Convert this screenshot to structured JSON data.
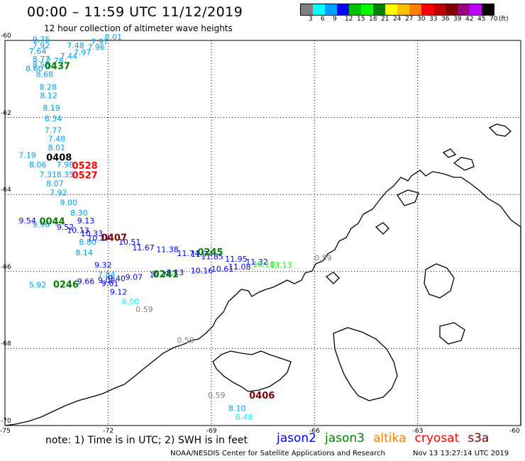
{
  "header": {
    "title": "00:00 – 11:59 UTC 11/12/2019",
    "subtitle": "12 hour collection of altimeter wave heights"
  },
  "legend": {
    "unit": "(ft)",
    "colors": [
      "#808080",
      "#00ffff",
      "#00a0ff",
      "#0000ff",
      "#00c000",
      "#00ff00",
      "#008000",
      "#ffff00",
      "#ffc000",
      "#ff8000",
      "#ff0000",
      "#c00000",
      "#800000",
      "#9b0080",
      "#c000ff",
      "#000000"
    ],
    "labels": [
      "3",
      "6",
      "9",
      "12",
      "15",
      "18",
      "21",
      "24",
      "27",
      "30",
      "33",
      "36",
      "39",
      "42",
      "45",
      "70"
    ]
  },
  "axes": {
    "lat_labels": [
      "-60",
      "-62",
      "-64",
      "-66",
      "-68",
      "-70"
    ],
    "lon_labels": [
      "-75",
      "-72",
      "-69",
      "-66",
      "-63",
      "-60"
    ]
  },
  "chart_data": {
    "type": "scatter",
    "x_range": [
      -75,
      -60
    ],
    "y_range": [
      -70,
      -60
    ],
    "grid": true,
    "points": [
      {
        "x": -74.2,
        "y": -60.05,
        "v": "9.75",
        "c": "#00a0ff"
      },
      {
        "x": -72.1,
        "y": -59.98,
        "v": "8.01",
        "c": "#00a0ff"
      },
      {
        "x": -72.5,
        "y": -60.1,
        "v": "7.97",
        "c": "#00a0ff"
      },
      {
        "x": -73.2,
        "y": -60.2,
        "v": "7.48",
        "c": "#00a0ff"
      },
      {
        "x": -74.2,
        "y": -60.2,
        "v": "7.92",
        "c": "#00a0ff"
      },
      {
        "x": -72.6,
        "y": -60.25,
        "v": "7.96",
        "c": "#00a0ff"
      },
      {
        "x": -73.0,
        "y": -60.38,
        "v": "7.97",
        "c": "#00a0ff"
      },
      {
        "x": -73.4,
        "y": -60.48,
        "v": "7.44",
        "c": "#00a0ff"
      },
      {
        "x": -74.3,
        "y": -60.35,
        "v": "7.64",
        "c": "#00a0ff"
      },
      {
        "x": -73.8,
        "y": -60.6,
        "v": "7.78",
        "c": "#00a0ff"
      },
      {
        "x": -74.2,
        "y": -60.55,
        "v": "8.77",
        "c": "#00a0ff"
      },
      {
        "x": -74.2,
        "y": -60.7,
        "v": "8.53",
        "c": "#00a0ff"
      },
      {
        "x": -74.4,
        "y": -60.8,
        "v": "8.60",
        "c": "#00a0ff"
      },
      {
        "x": -74.1,
        "y": -60.95,
        "v": "8.68",
        "c": "#00a0ff"
      },
      {
        "x": -74.0,
        "y": -61.28,
        "v": "8.28",
        "c": "#00a0ff"
      },
      {
        "x": -73.98,
        "y": -61.5,
        "v": "8.12",
        "c": "#00a0ff"
      },
      {
        "x": -73.9,
        "y": -61.82,
        "v": "8.19",
        "c": "#00a0ff"
      },
      {
        "x": -73.85,
        "y": -62.1,
        "v": "8.34",
        "c": "#00a0ff"
      },
      {
        "x": -73.85,
        "y": -62.4,
        "v": "7.77",
        "c": "#00a0ff"
      },
      {
        "x": -73.75,
        "y": -62.62,
        "v": "7.48",
        "c": "#00a0ff"
      },
      {
        "x": -73.75,
        "y": -62.85,
        "v": "8.01",
        "c": "#00a0ff"
      },
      {
        "x": -74.6,
        "y": -63.05,
        "v": "7.19",
        "c": "#00a0ff"
      },
      {
        "x": -74.3,
        "y": -63.3,
        "v": "8.06",
        "c": "#00a0ff"
      },
      {
        "x": -73.5,
        "y": -63.3,
        "v": "7.98",
        "c": "#00a0ff"
      },
      {
        "x": -74.0,
        "y": -63.55,
        "v": "7.31",
        "c": "#00a0ff"
      },
      {
        "x": -73.5,
        "y": -63.55,
        "v": "8.35",
        "c": "#00a0ff"
      },
      {
        "x": -73.8,
        "y": -63.78,
        "v": "8.07",
        "c": "#00a0ff"
      },
      {
        "x": -73.7,
        "y": -64.02,
        "v": "7.92",
        "c": "#00a0ff"
      },
      {
        "x": -73.4,
        "y": -64.28,
        "v": "9.00",
        "c": "#00a0ff"
      },
      {
        "x": -73.1,
        "y": -64.55,
        "v": "8.30",
        "c": "#00a0ff"
      },
      {
        "x": -74.6,
        "y": -64.75,
        "v": "9.54",
        "c": "#0000ff"
      },
      {
        "x": -74.2,
        "y": -64.85,
        "v": "9.96",
        "c": "#00a0ff"
      },
      {
        "x": -73.5,
        "y": -64.92,
        "v": "9.52",
        "c": "#0000ff"
      },
      {
        "x": -72.9,
        "y": -64.75,
        "v": "9.13",
        "c": "#0000ff"
      },
      {
        "x": -73.2,
        "y": -65.0,
        "v": "10.13",
        "c": "#0000ff"
      },
      {
        "x": -72.8,
        "y": -65.08,
        "v": "10.33",
        "c": "#0000ff"
      },
      {
        "x": -72.6,
        "y": -65.2,
        "v": "10.27",
        "c": "#0000ff"
      },
      {
        "x": -72.85,
        "y": -65.3,
        "v": "8.80",
        "c": "#00a0ff"
      },
      {
        "x": -71.7,
        "y": -65.3,
        "v": "10.51",
        "c": "#0000ff"
      },
      {
        "x": -71.3,
        "y": -65.45,
        "v": "11.67",
        "c": "#0000ff"
      },
      {
        "x": -70.6,
        "y": -65.5,
        "v": "11.38",
        "c": "#0000ff"
      },
      {
        "x": -70.0,
        "y": -65.6,
        "v": "11.74",
        "c": "#0000ff"
      },
      {
        "x": -69.6,
        "y": -65.62,
        "v": "11.74",
        "c": "#0000ff"
      },
      {
        "x": -69.3,
        "y": -65.68,
        "v": "11.85",
        "c": "#0000ff"
      },
      {
        "x": -68.6,
        "y": -65.75,
        "v": "11.95",
        "c": "#0000ff"
      },
      {
        "x": -68.0,
        "y": -65.82,
        "v": "11.32",
        "c": "#0000ff"
      },
      {
        "x": -72.95,
        "y": -65.58,
        "v": "8.14",
        "c": "#00a0ff"
      },
      {
        "x": -72.4,
        "y": -65.9,
        "v": "9.32",
        "c": "#0000ff"
      },
      {
        "x": -68.5,
        "y": -65.95,
        "v": "11.08",
        "c": "#0000ff"
      },
      {
        "x": -69.0,
        "y": -66.0,
        "v": "10.61",
        "c": "#0000ff"
      },
      {
        "x": -69.6,
        "y": -66.05,
        "v": "10.16",
        "c": "#0000ff"
      },
      {
        "x": -70.3,
        "y": -66.1,
        "v": "9.13",
        "c": "#0000ff"
      },
      {
        "x": -70.8,
        "y": -66.15,
        "v": "10.74",
        "c": "#0000ff"
      },
      {
        "x": -72.3,
        "y": -66.15,
        "v": "7.84",
        "c": "#00a0ff"
      },
      {
        "x": -71.5,
        "y": -66.22,
        "v": "9.07",
        "c": "#0000ff"
      },
      {
        "x": -72.0,
        "y": -66.25,
        "v": "9.40",
        "c": "#0000ff"
      },
      {
        "x": -72.3,
        "y": -66.3,
        "v": "9.02",
        "c": "#0000ff"
      },
      {
        "x": -72.9,
        "y": -66.33,
        "v": "9.66",
        "c": "#0000ff"
      },
      {
        "x": -72.2,
        "y": -66.38,
        "v": "9.61",
        "c": "#0000ff"
      },
      {
        "x": -74.3,
        "y": -66.42,
        "v": "5.92",
        "c": "#00a0ff"
      },
      {
        "x": -71.95,
        "y": -66.6,
        "v": "9.12",
        "c": "#0000ff"
      },
      {
        "x": -71.6,
        "y": -66.85,
        "v": "6.00",
        "c": "#00ffff"
      },
      {
        "x": -71.2,
        "y": -67.05,
        "v": "0.59",
        "c": "#808080"
      },
      {
        "x": -70.0,
        "y": -67.85,
        "v": "0.59",
        "c": "#808080"
      },
      {
        "x": -66.0,
        "y": -65.72,
        "v": "0.59",
        "c": "#808080"
      },
      {
        "x": -69.1,
        "y": -69.28,
        "v": "0.59",
        "c": "#808080"
      },
      {
        "x": -68.5,
        "y": -69.62,
        "v": "8.10",
        "c": "#00a0ff"
      },
      {
        "x": -68.3,
        "y": -69.85,
        "v": "6.48",
        "c": "#00ffff"
      },
      {
        "x": -67.3,
        "y": -65.9,
        "v": "13.13",
        "c": "#00ff00"
      },
      {
        "x": -67.8,
        "y": -65.88,
        "v": "10.10",
        "c": "#00ff00"
      }
    ],
    "passes": [
      {
        "x": -73.85,
        "y": -60.75,
        "label": "0437",
        "c": "#008000"
      },
      {
        "x": -73.8,
        "y": -63.12,
        "label": "0408",
        "c": "#000000"
      },
      {
        "x": -73.05,
        "y": -63.33,
        "label": "0528",
        "c": "#ff0000"
      },
      {
        "x": -73.05,
        "y": -63.58,
        "label": "0527",
        "c": "#ff0000"
      },
      {
        "x": -74.0,
        "y": -64.78,
        "v": "",
        "label": "0044",
        "c": "#008000"
      },
      {
        "x": -72.2,
        "y": -65.2,
        "label": "0407",
        "c": "#800000"
      },
      {
        "x": -69.4,
        "y": -65.58,
        "label": "0245",
        "c": "#008000"
      },
      {
        "x": -70.7,
        "y": -66.15,
        "label": "0241",
        "c": "#008000"
      },
      {
        "x": -73.6,
        "y": -66.42,
        "label": "0246",
        "c": "#008000"
      },
      {
        "x": -67.9,
        "y": -69.3,
        "label": "0406",
        "c": "#800000"
      }
    ]
  },
  "footer": {
    "note": "note: 1) Time is in UTC; 2) SWH is in feet",
    "satellites": [
      {
        "name": "jason2",
        "color": "#0000ff"
      },
      {
        "name": "jason3",
        "color": "#008000"
      },
      {
        "name": "altika",
        "color": "#ff8000"
      },
      {
        "name": "cryosat",
        "color": "#ff0000"
      },
      {
        "name": "s3a",
        "color": "#800000"
      }
    ],
    "credit": "NOAA/NESDIS Center for Satellite Applications and Research",
    "timestamp": "Nov 13 13:27:14 UTC 2019"
  }
}
